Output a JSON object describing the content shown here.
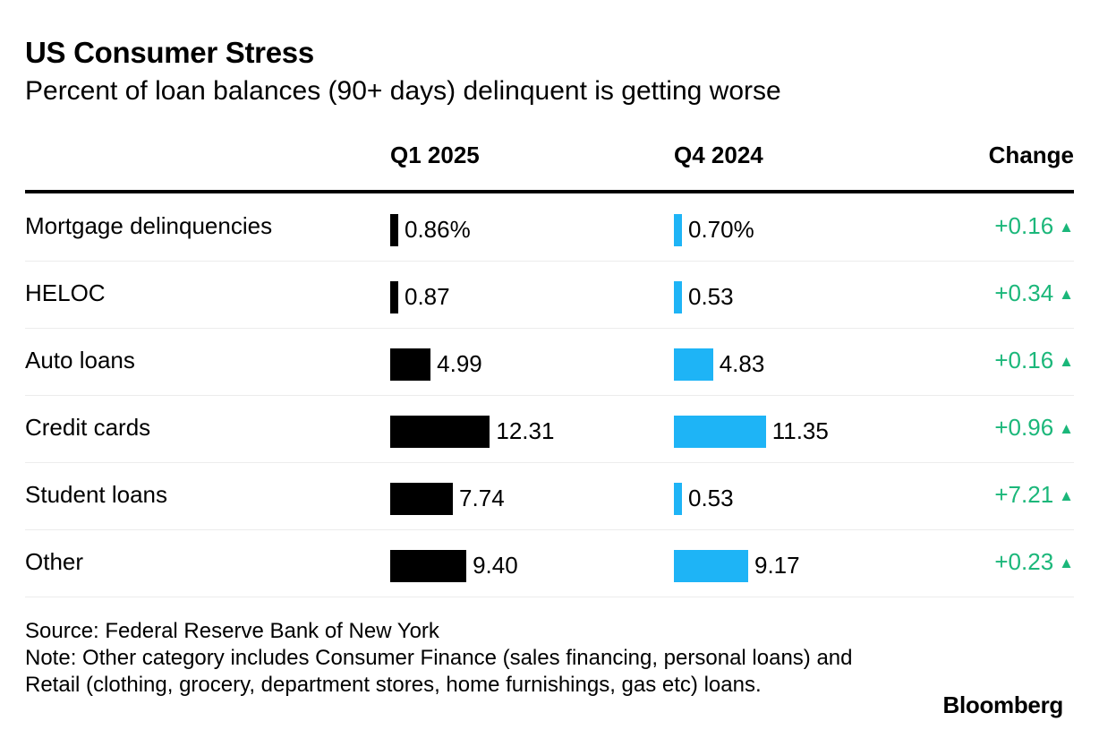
{
  "title": "US Consumer Stress",
  "subtitle": "Percent of loan balances (90+ days) delinquent is getting worse",
  "columns": {
    "q1": "Q1 2025",
    "q4": "Q4 2024",
    "change": "Change"
  },
  "colors": {
    "q1_bar": "#000000",
    "q4_bar": "#1eb4f6",
    "change_positive": "#1bb77a"
  },
  "chart_data": {
    "type": "table",
    "title": "US Consumer Stress",
    "subtitle": "Percent of loan balances (90+ days) delinquent is getting worse",
    "columns": [
      "Q1 2025",
      "Q4 2024",
      "Change"
    ],
    "rows": [
      {
        "label": "Mortgage delinquencies",
        "q1": 0.86,
        "q1_label": "0.86%",
        "q4": 0.7,
        "q4_label": "0.70%",
        "change_label": "+0.16"
      },
      {
        "label": "HELOC",
        "q1": 0.87,
        "q1_label": "0.87",
        "q4": 0.53,
        "q4_label": "0.53",
        "change_label": "+0.34"
      },
      {
        "label": "Auto loans",
        "q1": 4.99,
        "q1_label": "4.99",
        "q4": 4.83,
        "q4_label": "4.83",
        "change_label": "+0.16"
      },
      {
        "label": "Credit cards",
        "q1": 12.31,
        "q1_label": "12.31",
        "q4": 11.35,
        "q4_label": "11.35",
        "change_label": "+0.96"
      },
      {
        "label": "Student loans",
        "q1": 7.74,
        "q1_label": "7.74",
        "q4": 0.53,
        "q4_label": "0.53",
        "change_label": "+7.21"
      },
      {
        "label": "Other",
        "q1": 9.4,
        "q1_label": "9.40",
        "q4": 9.17,
        "q4_label": "9.17",
        "change_label": "+0.23"
      }
    ],
    "change_arrow": "▲"
  },
  "footer": {
    "source": "Source: Federal Reserve Bank of New York",
    "note": "Note: Other category includes Consumer Finance (sales financing, personal loans) and Retail (clothing, grocery, department stores, home furnishings, gas etc) loans."
  },
  "logo": "Bloomberg"
}
